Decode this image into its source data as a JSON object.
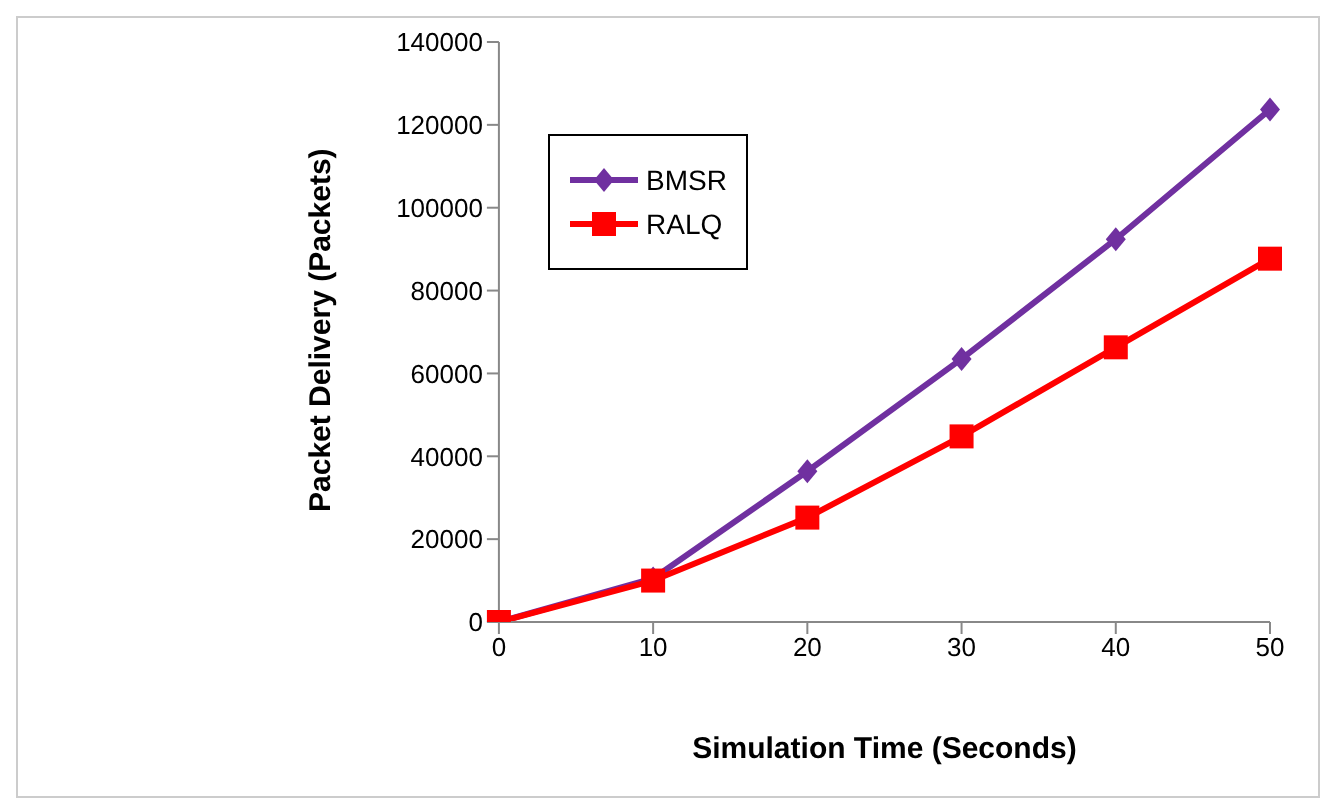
{
  "chart_data": {
    "type": "line",
    "xlabel": "Simulation Time (Seconds)",
    "ylabel": "Packet Delivery (Packets)",
    "categories": [
      "0",
      "10",
      "20",
      "30",
      "40",
      "50"
    ],
    "series": [
      {
        "name": "BMSR",
        "color": "#7030a0",
        "marker": "diamond",
        "values": [
          0,
          10500,
          36400,
          63500,
          92400,
          123700
        ]
      },
      {
        "name": "RALQ",
        "color": "#ff0000",
        "marker": "square",
        "values": [
          0,
          10000,
          25200,
          44800,
          66300,
          87700
        ]
      }
    ],
    "ylim": [
      0,
      140000
    ],
    "yticks": [
      0,
      20000,
      40000,
      60000,
      80000,
      100000,
      120000,
      140000
    ],
    "grid": false,
    "legend": "top left"
  }
}
